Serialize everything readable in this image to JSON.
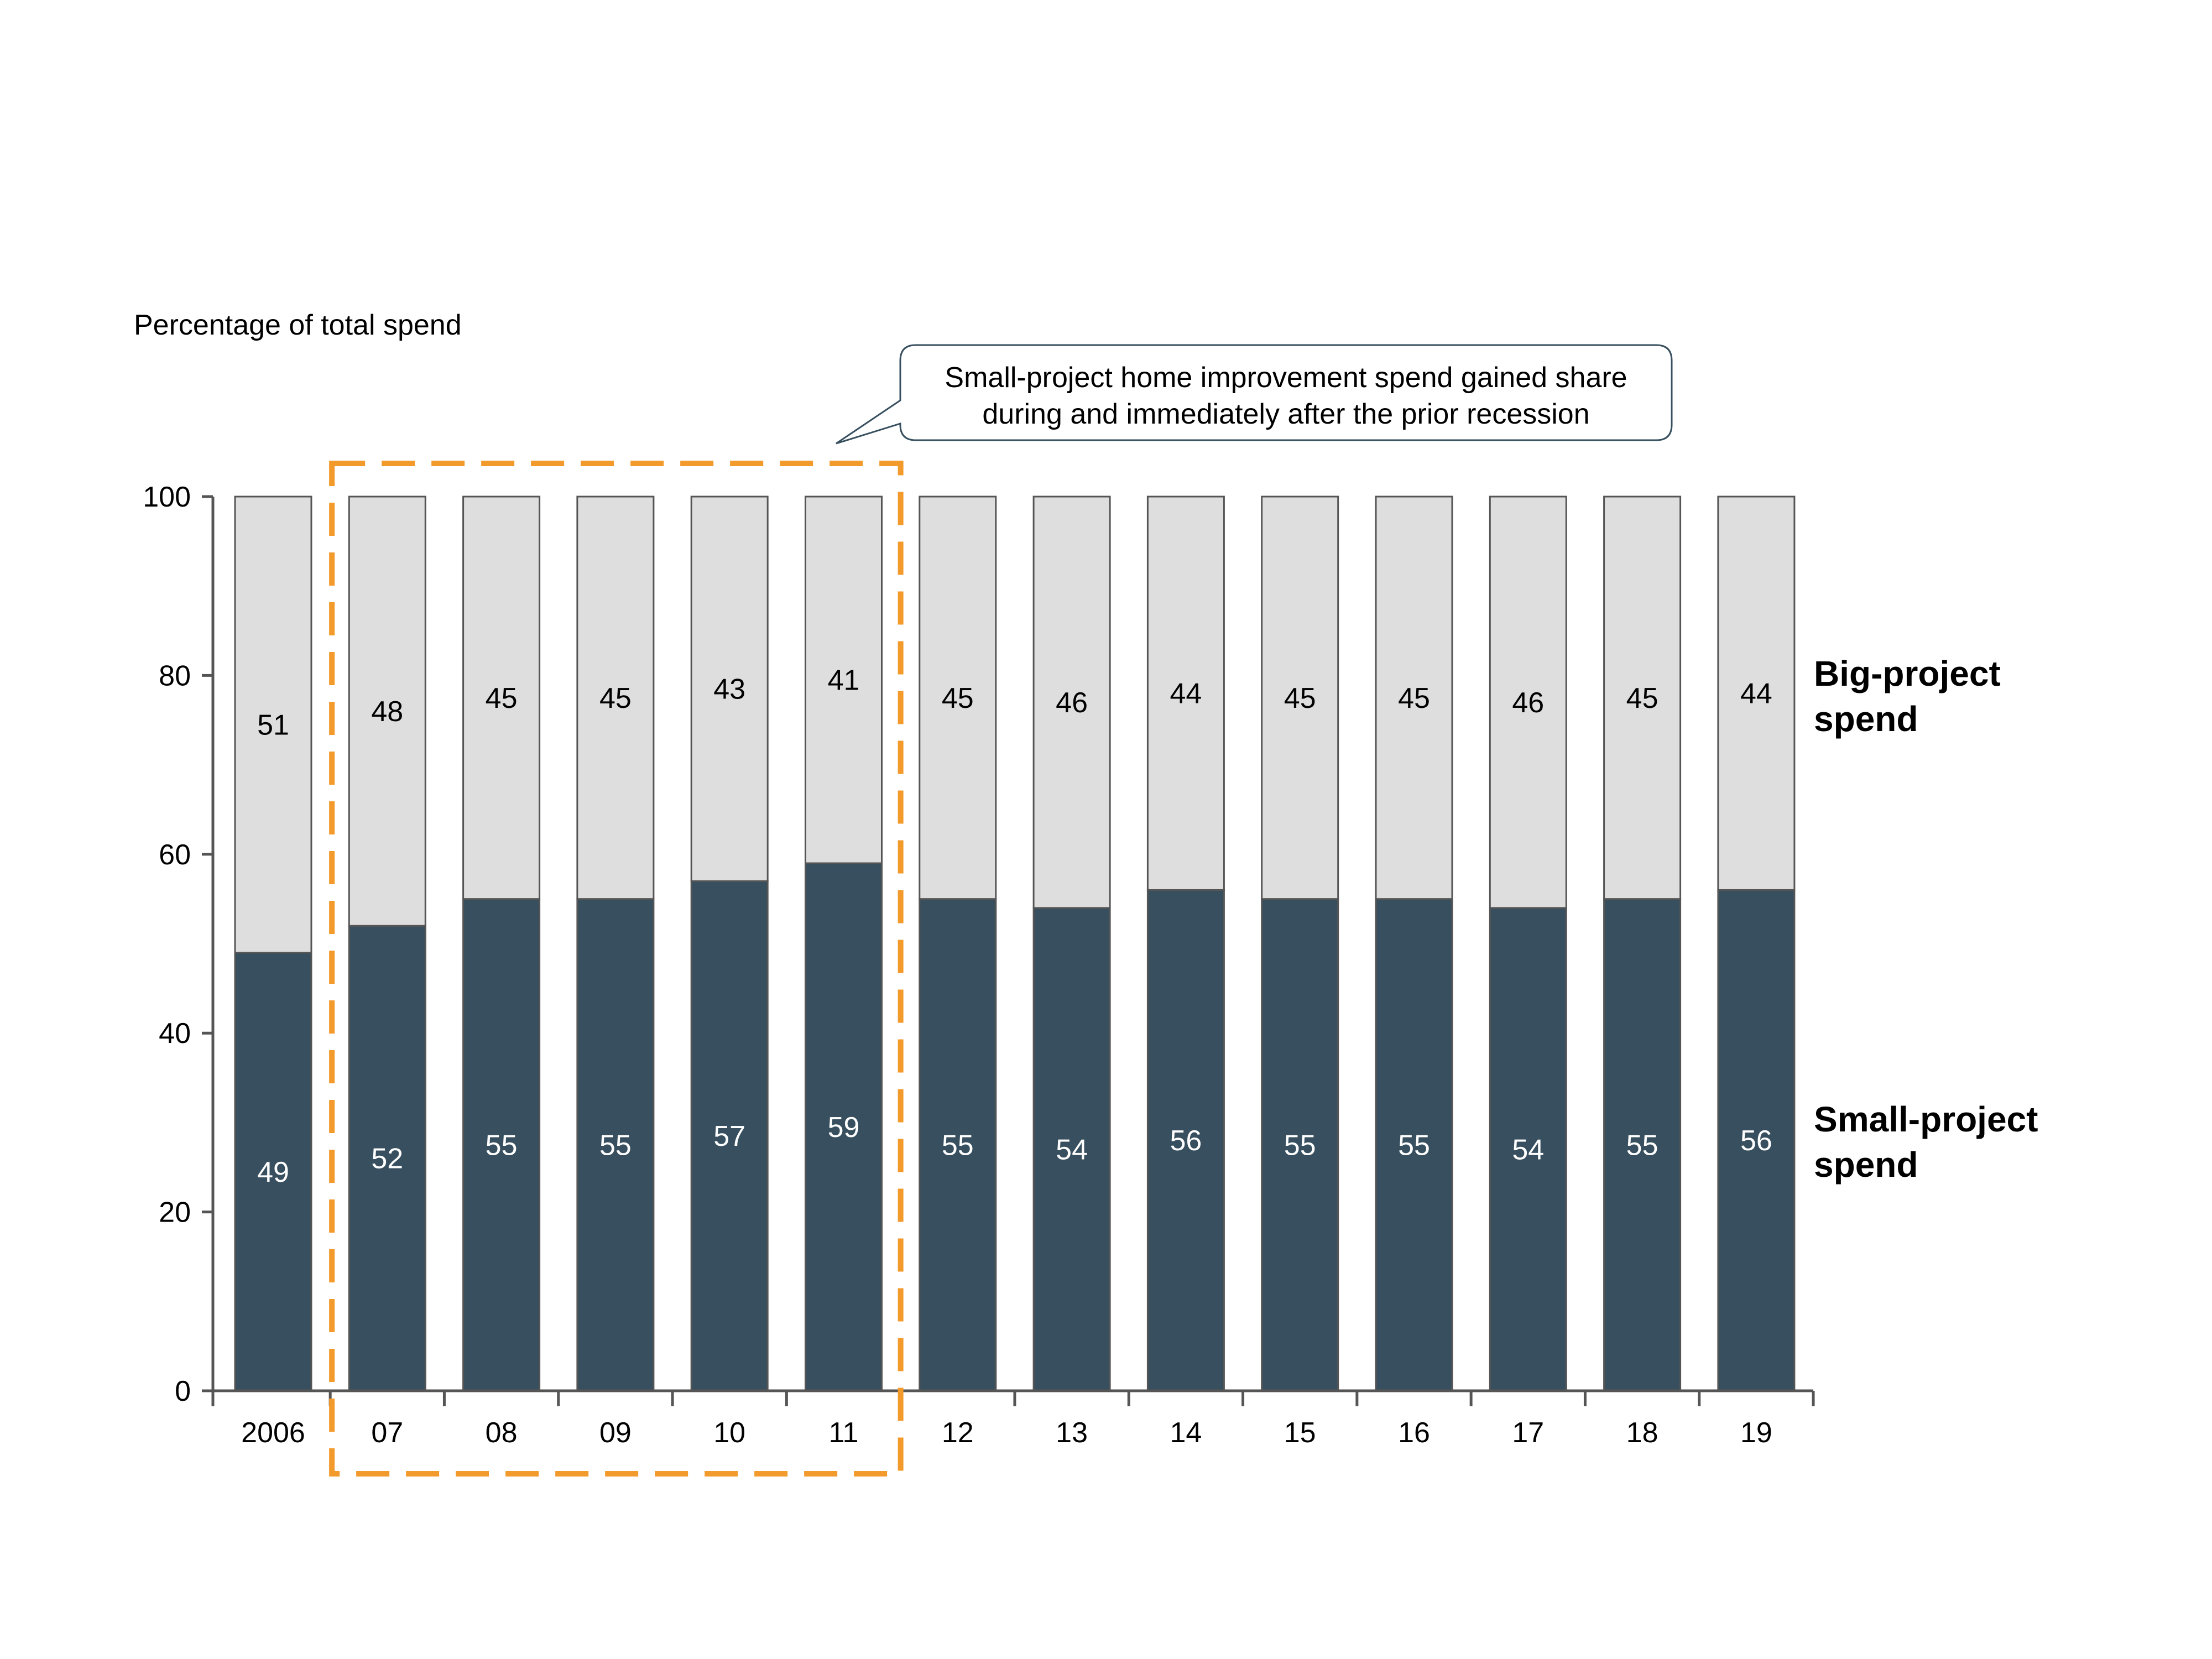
{
  "chart_data": {
    "type": "bar",
    "stacked": true,
    "title": "",
    "ylabel": "Percentage of total spend",
    "xlabel": "",
    "ylim": [
      0,
      100
    ],
    "yticks": [
      0,
      20,
      40,
      60,
      80,
      100
    ],
    "grid": false,
    "legend_placement": "right (labels beside last bar)",
    "categories": [
      "2006",
      "07",
      "08",
      "09",
      "10",
      "11",
      "12",
      "13",
      "14",
      "15",
      "16",
      "17",
      "18",
      "19"
    ],
    "series": [
      {
        "name": "Small-project spend",
        "color": "#374f5e",
        "label_color": "#ffffff",
        "values": [
          49,
          52,
          55,
          55,
          57,
          59,
          55,
          54,
          56,
          55,
          55,
          54,
          55,
          56
        ]
      },
      {
        "name": "Big-project spend",
        "color": "#dedede",
        "label_color": "#000000",
        "values": [
          51,
          48,
          45,
          45,
          43,
          41,
          45,
          46,
          44,
          45,
          45,
          46,
          45,
          44
        ]
      }
    ],
    "highlight": {
      "from_category": "07",
      "to_category": "11",
      "color": "#f39a2d",
      "style": "dashed"
    },
    "annotation": {
      "lines": [
        "Small-project home improvement spend gained share",
        "during and immediately after the prior recession"
      ]
    },
    "legend_labels": [
      {
        "series": "Big-project spend",
        "lines": [
          "Big-project",
          "spend"
        ]
      },
      {
        "series": "Small-project spend",
        "lines": [
          "Small-project",
          "spend"
        ]
      }
    ]
  }
}
